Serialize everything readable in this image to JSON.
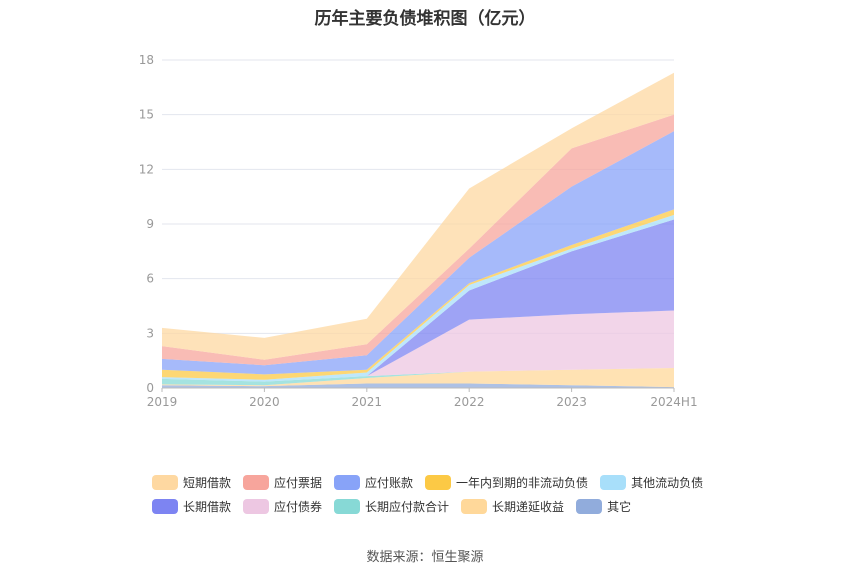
{
  "title": "历年主要负债堆积图（亿元）",
  "source": "数据来源：恒生聚源",
  "chart_data": {
    "type": "area",
    "stacked": true,
    "categories": [
      "2019",
      "2020",
      "2021",
      "2022",
      "2023",
      "2024H1"
    ],
    "y_ticks": [
      "0",
      "3",
      "6",
      "9",
      "12",
      "15",
      "18"
    ],
    "ylim": [
      0,
      18
    ],
    "grid": true,
    "legend_position": "bottom",
    "series": [
      {
        "name": "其它",
        "color": "#91acdc",
        "values": [
          0.15,
          0.1,
          0.25,
          0.25,
          0.15,
          0.05
        ]
      },
      {
        "name": "长期递延收益",
        "color": "#ffd89a",
        "values": [
          0.05,
          0.05,
          0.3,
          0.65,
          0.85,
          1.05
        ]
      },
      {
        "name": "长期应付款合计",
        "color": "#87d9d6",
        "values": [
          0.3,
          0.2,
          0.1,
          0.0,
          0.0,
          0.0
        ]
      },
      {
        "name": "应付债券",
        "color": "#edc7e2",
        "values": [
          0.0,
          0.0,
          0.0,
          2.85,
          3.05,
          3.15
        ]
      },
      {
        "name": "长期借款",
        "color": "#7d84f2",
        "values": [
          0.0,
          0.0,
          0.0,
          1.6,
          3.45,
          5.0
        ]
      },
      {
        "name": "其他流动负债",
        "color": "#a8dffa",
        "values": [
          0.1,
          0.1,
          0.2,
          0.3,
          0.15,
          0.25
        ]
      },
      {
        "name": "一年内到期的非流动负债",
        "color": "#fcc945",
        "values": [
          0.4,
          0.3,
          0.15,
          0.1,
          0.2,
          0.3
        ]
      },
      {
        "name": "应付账款",
        "color": "#88a3f8",
        "values": [
          0.6,
          0.5,
          0.8,
          1.4,
          3.2,
          4.3
        ]
      },
      {
        "name": "应付票据",
        "color": "#f7a59c",
        "values": [
          0.7,
          0.3,
          0.6,
          0.5,
          2.1,
          0.9
        ]
      },
      {
        "name": "短期借款",
        "color": "#fed8a1",
        "values": [
          1.0,
          1.2,
          1.4,
          3.3,
          1.1,
          2.3
        ]
      }
    ],
    "legend_order": [
      [
        "短期借款",
        "应付票据",
        "应付账款",
        "一年内到期的非流动负债",
        "其他流动负债"
      ],
      [
        "长期借款",
        "应付债券",
        "长期应付款合计",
        "长期递延收益",
        "其它"
      ]
    ]
  }
}
